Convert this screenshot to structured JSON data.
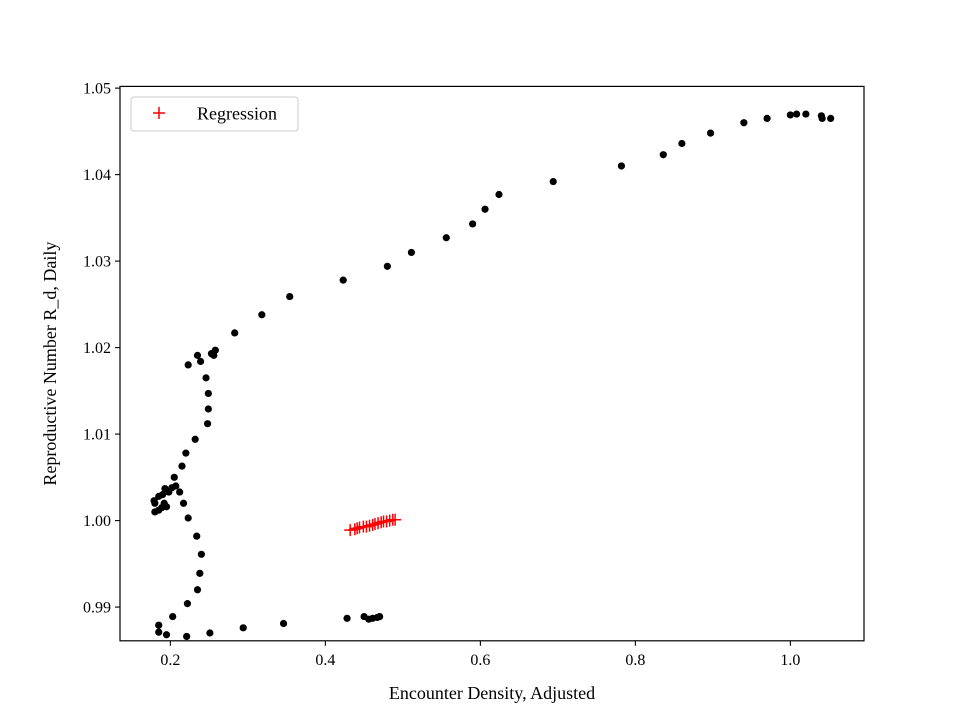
{
  "chart_data": {
    "type": "scatter",
    "title": "",
    "xlabel": "Encounter Density, Adjusted",
    "ylabel": "Reproductive Number R_d, Daily",
    "xlim": [
      0.135,
      1.095
    ],
    "ylim": [
      0.9861,
      1.0502
    ],
    "xticks": [
      {
        "value": 0.2,
        "label": "0.2"
      },
      {
        "value": 0.4,
        "label": "0.4"
      },
      {
        "value": 0.6,
        "label": "0.6"
      },
      {
        "value": 0.8,
        "label": "0.8"
      },
      {
        "value": 1.0,
        "label": "1.0"
      }
    ],
    "yticks": [
      {
        "value": 0.99,
        "label": "0.99"
      },
      {
        "value": 1.0,
        "label": "1.00"
      },
      {
        "value": 1.01,
        "label": "1.01"
      },
      {
        "value": 1.02,
        "label": "1.02"
      },
      {
        "value": 1.03,
        "label": "1.03"
      },
      {
        "value": 1.04,
        "label": "1.04"
      },
      {
        "value": 1.05,
        "label": "1.05"
      }
    ],
    "grid": false,
    "legend": {
      "location": "upper-left",
      "entries": [
        {
          "label": "Regression",
          "color": "#ff0000",
          "marker": "+"
        }
      ]
    },
    "series": [
      {
        "marker": "dot",
        "color": "#000000",
        "points": [
          [
            1.052,
            1.0465
          ],
          [
            1.041,
            1.0465
          ],
          [
            1.04,
            1.0468
          ],
          [
            1.02,
            1.047
          ],
          [
            1.008,
            1.047
          ],
          [
            1.0,
            1.0469
          ],
          [
            0.97,
            1.0465
          ],
          [
            0.94,
            1.046
          ],
          [
            0.897,
            1.0448
          ],
          [
            0.86,
            1.0436
          ],
          [
            0.836,
            1.0423
          ],
          [
            0.782,
            1.041
          ],
          [
            0.694,
            1.0392
          ],
          [
            0.624,
            1.0377
          ],
          [
            0.606,
            1.036
          ],
          [
            0.59,
            1.0343
          ],
          [
            0.556,
            1.0327
          ],
          [
            0.511,
            1.031
          ],
          [
            0.48,
            1.0294
          ],
          [
            0.423,
            1.0278
          ],
          [
            0.354,
            1.0259
          ],
          [
            0.318,
            1.0238
          ],
          [
            0.283,
            1.0217
          ],
          [
            0.258,
            1.0197
          ],
          [
            0.256,
            1.0191
          ],
          [
            0.253,
            1.0193
          ],
          [
            0.235,
            1.0191
          ],
          [
            0.239,
            1.0184
          ],
          [
            0.223,
            1.018
          ],
          [
            0.246,
            1.0165
          ],
          [
            0.249,
            1.0147
          ],
          [
            0.249,
            1.0129
          ],
          [
            0.248,
            1.0112
          ],
          [
            0.232,
            1.0094
          ],
          [
            0.22,
            1.0078
          ],
          [
            0.215,
            1.0063
          ],
          [
            0.205,
            1.005
          ],
          [
            0.212,
            1.0033
          ],
          [
            0.207,
            1.004
          ],
          [
            0.202,
            1.0038
          ],
          [
            0.198,
            1.0033
          ],
          [
            0.193,
            1.0037
          ],
          [
            0.19,
            1.003
          ],
          [
            0.192,
            1.002
          ],
          [
            0.189,
            1.0015
          ],
          [
            0.185,
            1.0028
          ],
          [
            0.18,
            1.002
          ],
          [
            0.179,
            1.0023
          ],
          [
            0.18,
            1.001
          ],
          [
            0.185,
            1.0012
          ],
          [
            0.195,
            1.0016
          ],
          [
            0.217,
            1.002
          ],
          [
            0.223,
            1.0003
          ],
          [
            0.234,
            0.9982
          ],
          [
            0.24,
            0.9961
          ],
          [
            0.238,
            0.9939
          ],
          [
            0.235,
            0.992
          ],
          [
            0.222,
            0.9904
          ],
          [
            0.203,
            0.9889
          ],
          [
            0.185,
            0.9879
          ],
          [
            0.185,
            0.9871
          ],
          [
            0.195,
            0.9868
          ],
          [
            0.221,
            0.9866
          ],
          [
            0.251,
            0.987
          ],
          [
            0.294,
            0.9876
          ],
          [
            0.346,
            0.9881
          ],
          [
            0.428,
            0.9887
          ],
          [
            0.45,
            0.9889
          ],
          [
            0.456,
            0.9886
          ],
          [
            0.461,
            0.9887
          ],
          [
            0.467,
            0.9888
          ],
          [
            0.47,
            0.9889
          ]
        ]
      },
      {
        "name": "Regression",
        "marker": "+",
        "color": "#ff0000",
        "points": [
          [
            0.432,
            0.9989
          ],
          [
            0.438,
            0.999
          ],
          [
            0.441,
            0.9991
          ],
          [
            0.444,
            0.9992
          ],
          [
            0.449,
            0.9993
          ],
          [
            0.453,
            0.9993
          ],
          [
            0.457,
            0.9994
          ],
          [
            0.461,
            0.9995
          ],
          [
            0.464,
            0.9996
          ],
          [
            0.468,
            0.9997
          ],
          [
            0.472,
            0.9998
          ],
          [
            0.475,
            0.9999
          ],
          [
            0.479,
            0.9999
          ],
          [
            0.483,
            1.0
          ],
          [
            0.487,
            1.0001
          ],
          [
            0.49,
            1.0001
          ]
        ]
      }
    ]
  }
}
